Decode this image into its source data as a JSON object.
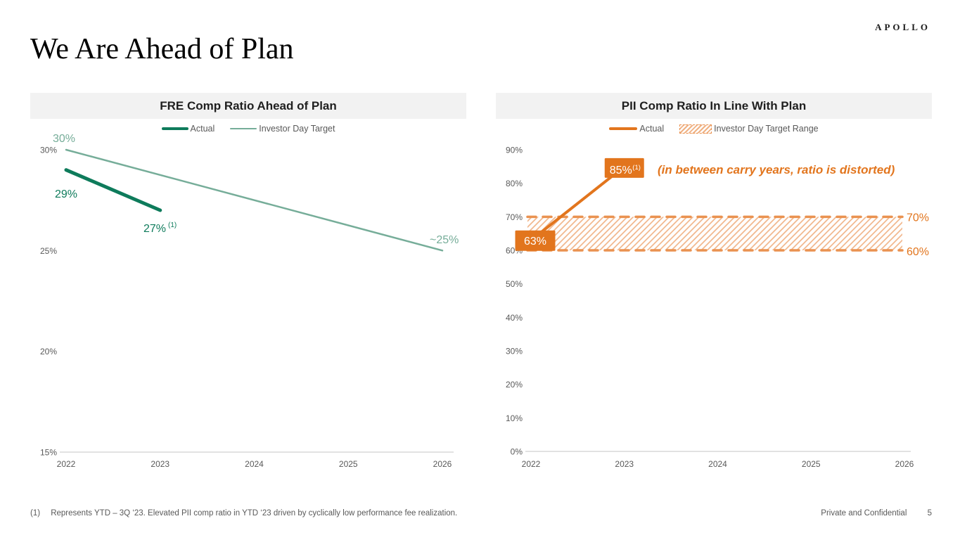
{
  "brand": {
    "logo": "APOLLO"
  },
  "page_title": "We Are Ahead of Plan",
  "colors": {
    "green_dark": "#0e7b5b",
    "green_light": "#76ad99",
    "orange": "#e2751d",
    "orange_light": "#ea9250",
    "hatch": "#f0b183",
    "axis_text": "#595959",
    "axis_line": "#d9d9d9",
    "header_bg": "#f2f2f2"
  },
  "chart_data": [
    {
      "type": "line",
      "title": "FRE Comp Ratio Ahead of Plan",
      "x_ticks": [
        "2022",
        "2023",
        "2024",
        "2025",
        "2026"
      ],
      "y_ticks": [
        30,
        25,
        20,
        15
      ],
      "y_tick_labels": [
        "30%",
        "25%",
        "20%",
        "15%"
      ],
      "ylim": [
        15,
        30
      ],
      "grid": false,
      "legend_position": "top",
      "series": [
        {
          "name": "Actual",
          "color": "#0e7b5b",
          "points": [
            {
              "year": 2022,
              "value": 29
            },
            {
              "year": 2023,
              "value": 27
            }
          ],
          "point_labels": [
            {
              "text": "29%"
            },
            {
              "text": "27%",
              "sup": "(1)"
            }
          ]
        },
        {
          "name": "Investor Day Target",
          "color": "#76ad99",
          "points": [
            {
              "year": 2022,
              "value": 30
            },
            {
              "year": 2026,
              "value": 25
            }
          ],
          "point_labels": [
            {
              "text": "30%"
            },
            {
              "text": "~25%"
            }
          ]
        }
      ]
    },
    {
      "type": "line",
      "title": "PII Comp Ratio In Line With Plan",
      "x_ticks": [
        "2022",
        "2023",
        "2024",
        "2025",
        "2026"
      ],
      "y_ticks": [
        90,
        80,
        70,
        60,
        50,
        40,
        30,
        20,
        10,
        0
      ],
      "y_tick_labels": [
        "90%",
        "80%",
        "70%",
        "60%",
        "50%",
        "40%",
        "30%",
        "20%",
        "10%",
        "0%"
      ],
      "ylim": [
        0,
        90
      ],
      "grid": false,
      "legend_position": "top",
      "series": [
        {
          "name": "Actual",
          "color": "#e2751d",
          "points": [
            {
              "year": 2022,
              "value": 63
            },
            {
              "year": 2023,
              "value": 85
            }
          ],
          "point_labels": [
            {
              "text": "63%"
            },
            {
              "text": "85%",
              "sup": "(1)"
            }
          ]
        }
      ],
      "band": {
        "name": "Investor Day Target Range",
        "from": 60,
        "to": 70,
        "labels": [
          "70%",
          "60%"
        ],
        "style": "hatched"
      },
      "annotation": "(in between carry years, ratio is distorted)"
    }
  ],
  "footer": {
    "footnote_marker": "(1)",
    "footnote_text": "Represents YTD – 3Q ‘23.  Elevated PII comp ratio in YTD ‘23 driven by cyclically low performance fee realization.",
    "confidentiality": "Private and Confidential",
    "page_number": "5"
  }
}
